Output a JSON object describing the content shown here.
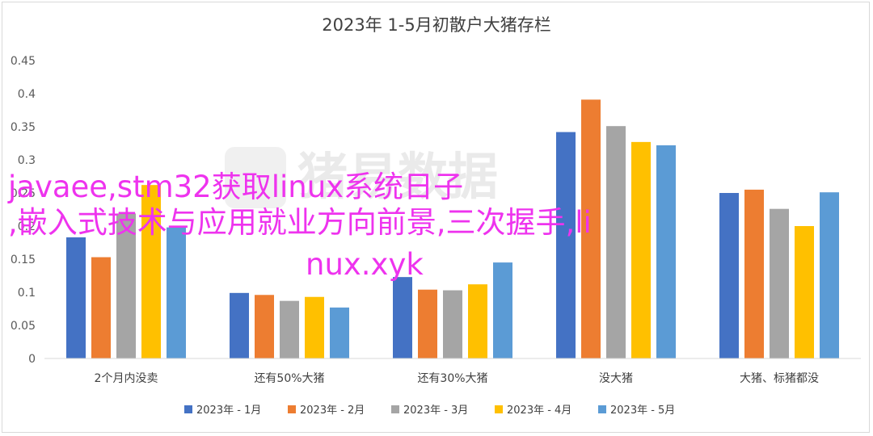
{
  "chart_data": {
    "type": "bar",
    "title": "2023年 1-5月初散户大猪存栏",
    "categories": [
      "2个月内没卖",
      "还有50%大猪",
      "还有30%大猪",
      "没大猪",
      "大猪、标猪都没"
    ],
    "series": [
      {
        "name": "2023年 - 1月",
        "color": "#4472C4",
        "values": [
          0.183,
          0.099,
          0.123,
          0.342,
          0.25
        ]
      },
      {
        "name": "2023年 - 2月",
        "color": "#ED7D31",
        "values": [
          0.153,
          0.096,
          0.104,
          0.391,
          0.255
        ]
      },
      {
        "name": "2023年 - 3月",
        "color": "#A5A5A5",
        "values": [
          0.219,
          0.087,
          0.103,
          0.351,
          0.226
        ]
      },
      {
        "name": "2023年 - 4月",
        "color": "#FFC000",
        "values": [
          0.262,
          0.093,
          0.112,
          0.327,
          0.2
        ]
      },
      {
        "name": "2023年 - 5月",
        "color": "#5B9BD5",
        "values": [
          0.198,
          0.077,
          0.145,
          0.322,
          0.251
        ]
      }
    ],
    "ylim": [
      0,
      0.45
    ],
    "yticks": [
      0,
      0.05,
      0.1,
      0.15,
      0.2,
      0.25,
      0.3,
      0.35,
      0.4,
      0.45
    ],
    "grid": false,
    "legend_position": "bottom"
  },
  "watermark": {
    "text": "猪易数据"
  },
  "overlay": {
    "lines": [
      "javaee,stm32获取linux系统日子",
      ",嵌入式技术与应用就业方向前景,三次握手,li",
      "nux.xyk"
    ]
  }
}
